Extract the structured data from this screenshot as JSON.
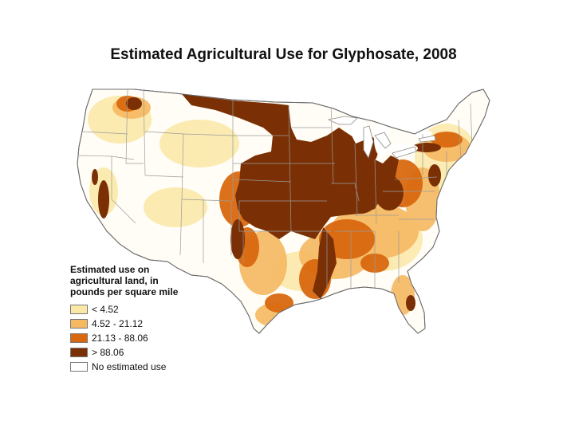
{
  "title": "Estimated Agricultural Use for Glyphosate, 2008",
  "legend": {
    "title_lines": [
      "Estimated use on",
      "agricultural land, in",
      "pounds per square mile"
    ],
    "items": [
      {
        "label": "< 4.52",
        "color": "#fbe8a6"
      },
      {
        "label": "4.52 - 21.12",
        "color": "#f6b862"
      },
      {
        "label": "21.13 - 88.06",
        "color": "#d9690f"
      },
      {
        "label": "> 88.06",
        "color": "#7a3004"
      },
      {
        "label": "No estimated use",
        "color": "#ffffff"
      }
    ]
  },
  "colors": {
    "state_border": "#9a9a9a",
    "outline": "#6b6b6b",
    "heavy": "#7a3004",
    "medium": "#d9690f",
    "light": "#f6b862",
    "lightest": "#fbe8a6"
  }
}
